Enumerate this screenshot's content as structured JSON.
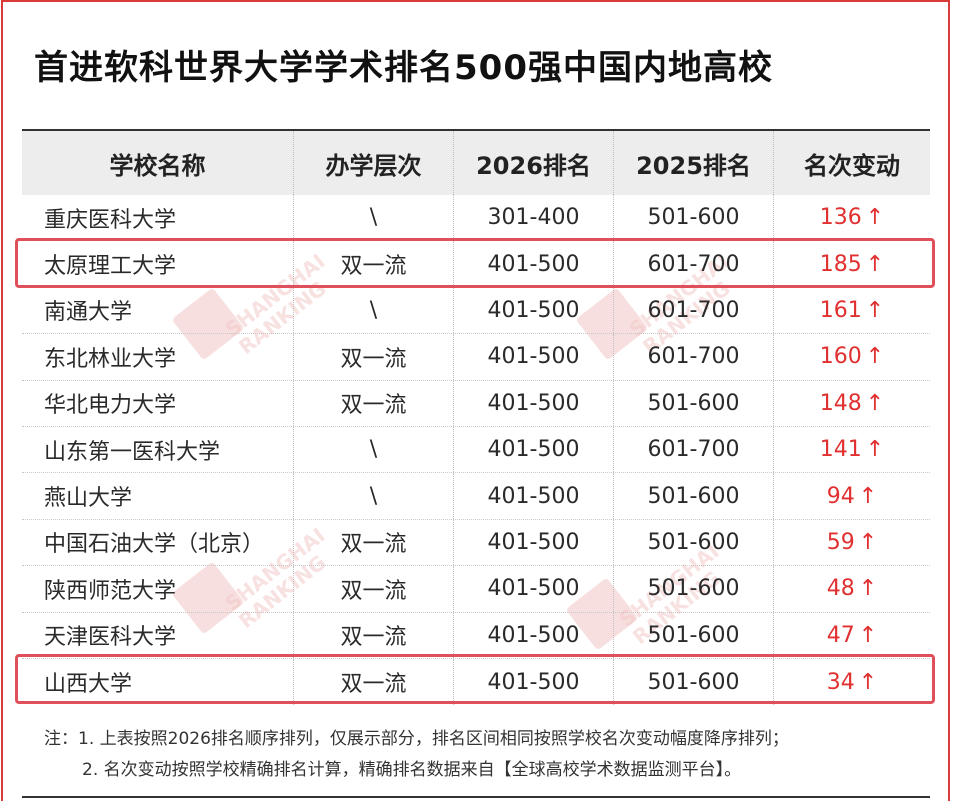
{
  "title": "首进软科世界大学学术排名500强中国内地高校",
  "table": {
    "headers": [
      "学校名称",
      "办学层次",
      "2026排名",
      "2025排名",
      "名次变动"
    ],
    "rows": [
      {
        "name": "重庆医科大学",
        "level": "\\",
        "rank2026": "301-400",
        "rank2025": "501-600",
        "change": "136",
        "highlighted": false
      },
      {
        "name": "太原理工大学",
        "level": "双一流",
        "rank2026": "401-500",
        "rank2025": "601-700",
        "change": "185",
        "highlighted": true
      },
      {
        "name": "南通大学",
        "level": "\\",
        "rank2026": "401-500",
        "rank2025": "601-700",
        "change": "161",
        "highlighted": false
      },
      {
        "name": "东北林业大学",
        "level": "双一流",
        "rank2026": "401-500",
        "rank2025": "601-700",
        "change": "160",
        "highlighted": false
      },
      {
        "name": "华北电力大学",
        "level": "双一流",
        "rank2026": "401-500",
        "rank2025": "501-600",
        "change": "148",
        "highlighted": false
      },
      {
        "name": "山东第一医科大学",
        "level": "\\",
        "rank2026": "401-500",
        "rank2025": "601-700",
        "change": "141",
        "highlighted": false
      },
      {
        "name": "燕山大学",
        "level": "\\",
        "rank2026": "401-500",
        "rank2025": "501-600",
        "change": "94",
        "highlighted": false
      },
      {
        "name": "中国石油大学（北京）",
        "level": "双一流",
        "rank2026": "401-500",
        "rank2025": "501-600",
        "change": "59",
        "highlighted": false
      },
      {
        "name": "陕西师范大学",
        "level": "双一流",
        "rank2026": "401-500",
        "rank2025": "501-600",
        "change": "48",
        "highlighted": false
      },
      {
        "name": "天津医科大学",
        "level": "双一流",
        "rank2026": "401-500",
        "rank2025": "501-600",
        "change": "47",
        "highlighted": false
      },
      {
        "name": "山西大学",
        "level": "双一流",
        "rank2026": "401-500",
        "rank2025": "501-600",
        "change": "34",
        "highlighted": true
      }
    ],
    "change_arrow": "↑",
    "change_color": "#e03030",
    "highlight_color": "#e0505a"
  },
  "watermark": {
    "line1": "SHANGHAI",
    "line2": "RANKING",
    "logo": "软科"
  },
  "notes": [
    "注：1. 上表按照2026排名顺序排列，仅展示部分，排名区间相同按照学校名次变动幅度降序排列；",
    "2. 名次变动按照学校精确排名计算，精确排名数据来自【全球高校学术数据监测平台】。"
  ]
}
